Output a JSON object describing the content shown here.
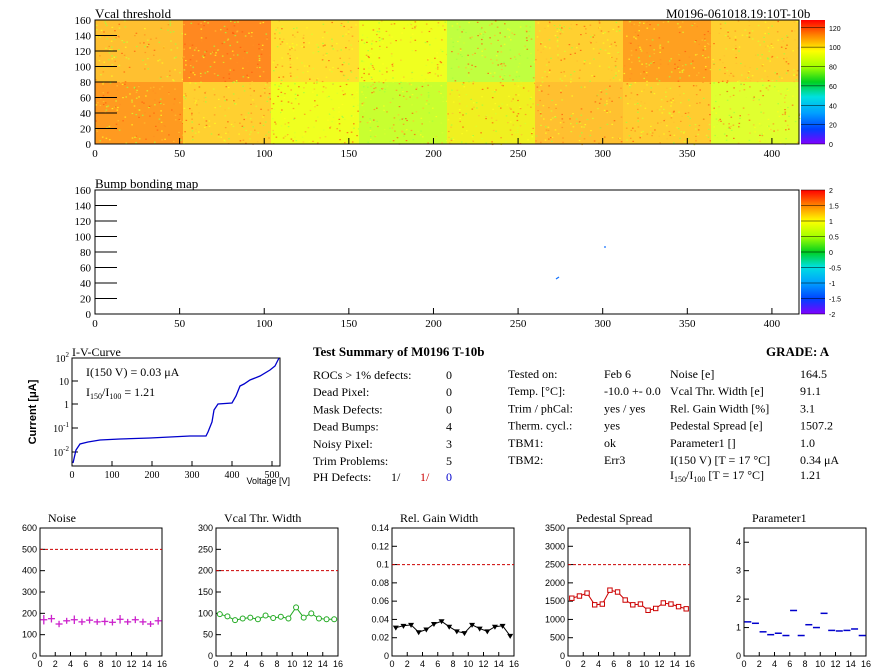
{
  "module_id": "M0196-061018.19:10T-10b",
  "vcal_map": {
    "title": "Vcal threshold",
    "xticks": [
      0,
      50,
      100,
      150,
      200,
      250,
      300,
      350,
      400
    ],
    "yticks": [
      0,
      20,
      40,
      60,
      80,
      100,
      120,
      140,
      160
    ],
    "colorbar_ticks": [
      0,
      20,
      40,
      60,
      80,
      100,
      120
    ]
  },
  "bump_map": {
    "title": "Bump bonding map",
    "xticks": [
      0,
      50,
      100,
      150,
      200,
      250,
      300,
      350,
      400
    ],
    "yticks": [
      0,
      20,
      40,
      60,
      80,
      100,
      120,
      140,
      160
    ],
    "colorbar_ticks": [
      "-2",
      "-1.5",
      "-1",
      "-0.5",
      "0",
      "0.5",
      "1",
      "1.5",
      "2"
    ]
  },
  "iv_curve": {
    "title": "I-V-Curve",
    "ylabel": "Current [μA]",
    "xlabel": "Voltage [V]",
    "xticks": [
      0,
      100,
      200,
      300,
      400,
      500
    ],
    "i150_label": "I(150 V) = 0.03 μA",
    "ratio_label_main": "I",
    "ratio_sub1": "150",
    "ratio_slash": "/I",
    "ratio_sub2": "100",
    "ratio_value": "=  1.21"
  },
  "summary": {
    "title": "Test Summary of M0196    T-10b",
    "grade": "GRADE:  A",
    "rows": [
      {
        "label": "ROCs > 1% defects:",
        "value": "0"
      },
      {
        "label": "Dead Pixel:",
        "value": "0"
      },
      {
        "label": "Mask Defects:",
        "value": "0"
      },
      {
        "label": "Dead Bumps:",
        "value": "4"
      },
      {
        "label": "Noisy Pixel:",
        "value": "3"
      },
      {
        "label": "Trim Problems:",
        "value": "5"
      }
    ],
    "ph_label": "PH Defects:",
    "ph_v1": "1/",
    "ph_v2": "1/",
    "ph_v3": "0",
    "mid": [
      {
        "label": "Tested on:",
        "value": "Feb 6"
      },
      {
        "label": "Temp. [°C]:",
        "value": "-10.0 +- 0.0"
      },
      {
        "label": "Trim / phCal:",
        "value": "yes / yes"
      },
      {
        "label": "Therm. cycl.:",
        "value": "yes"
      },
      {
        "label": "TBM1:",
        "value": "ok"
      },
      {
        "label": "TBM2:",
        "value": "Err3"
      }
    ],
    "right": [
      {
        "label": "Noise [e]",
        "value": "164.5"
      },
      {
        "label": "Vcal Thr. Width [e]",
        "value": "91.1"
      },
      {
        "label": "Rel. Gain Width [%]",
        "value": "3.1"
      },
      {
        "label": "Pedestal Spread [e]",
        "value": "1507.2"
      },
      {
        "label": "Parameter1 []",
        "value": "1.0"
      },
      {
        "label": "I(150 V)  [T = 17 °C]",
        "value": "0.34 μA"
      }
    ],
    "ratio_row": {
      "pre": "I",
      "sub1": "150",
      "mid": "/I",
      "sub2": "100",
      "post": "  [T = 17 °C]",
      "value": "1.21"
    }
  },
  "chart_data": [
    {
      "type": "scatter",
      "title": "Noise",
      "xlim": [
        0,
        16
      ],
      "ylim": [
        0,
        600
      ],
      "yticks": [
        "0",
        "100",
        "200",
        "300",
        "400",
        "500",
        "600"
      ],
      "xticks": [
        "0",
        "2",
        "4",
        "6",
        "8",
        "10",
        "12",
        "14",
        "16"
      ],
      "limit": 500,
      "color": "#cc22cc",
      "marker": "plus",
      "x": [
        0.5,
        1.5,
        2.5,
        3.5,
        4.5,
        5.5,
        6.5,
        7.5,
        8.5,
        9.5,
        10.5,
        11.5,
        12.5,
        13.5,
        14.5,
        15.5
      ],
      "values": [
        170,
        175,
        150,
        165,
        170,
        160,
        168,
        160,
        162,
        158,
        172,
        160,
        170,
        160,
        150,
        165
      ],
      "errors": [
        22,
        18,
        15,
        14,
        20,
        15,
        16,
        14,
        18,
        15,
        20,
        14,
        16,
        15,
        14,
        18
      ]
    },
    {
      "type": "line",
      "title": "Vcal Thr. Width",
      "xlim": [
        0,
        16
      ],
      "ylim": [
        0,
        300
      ],
      "yticks": [
        "0",
        "50",
        "100",
        "150",
        "200",
        "250",
        "300"
      ],
      "xticks": [
        "0",
        "2",
        "4",
        "6",
        "8",
        "10",
        "12",
        "14",
        "16"
      ],
      "limit": 200,
      "color": "#22aa22",
      "marker": "circle",
      "x": [
        0.5,
        1.5,
        2.5,
        3.5,
        4.5,
        5.5,
        6.5,
        7.5,
        8.5,
        9.5,
        10.5,
        11.5,
        12.5,
        13.5,
        14.5,
        15.5
      ],
      "values": [
        98,
        93,
        84,
        88,
        90,
        86,
        95,
        89,
        92,
        88,
        114,
        90,
        100,
        88,
        86,
        86
      ]
    },
    {
      "type": "line",
      "title": "Rel. Gain Width",
      "xlim": [
        0,
        16
      ],
      "ylim": [
        0,
        0.14
      ],
      "yticks": [
        "0",
        "0.02",
        "0.04",
        "0.06",
        "0.08",
        "0.1",
        "0.12",
        "0.14"
      ],
      "xticks": [
        "0",
        "2",
        "4",
        "6",
        "8",
        "10",
        "12",
        "14",
        "16"
      ],
      "limit": 0.1,
      "color": "#000000",
      "marker": "tri",
      "x": [
        0.5,
        1.5,
        2.5,
        3.5,
        4.5,
        5.5,
        6.5,
        7.5,
        8.5,
        9.5,
        10.5,
        11.5,
        12.5,
        13.5,
        14.5,
        15.5
      ],
      "values": [
        0.031,
        0.033,
        0.034,
        0.026,
        0.029,
        0.035,
        0.038,
        0.032,
        0.027,
        0.025,
        0.034,
        0.03,
        0.027,
        0.032,
        0.033,
        0.022
      ]
    },
    {
      "type": "line",
      "title": "Pedestal Spread",
      "xlim": [
        0,
        16
      ],
      "ylim": [
        0,
        3500
      ],
      "yticks": [
        "0",
        "500",
        "1000",
        "1500",
        "2000",
        "2500",
        "3000",
        "3500"
      ],
      "xticks": [
        "0",
        "2",
        "4",
        "6",
        "8",
        "10",
        "12",
        "14",
        "16"
      ],
      "limit": 2500,
      "color": "#cc0000",
      "marker": "square",
      "x": [
        0.5,
        1.5,
        2.5,
        3.5,
        4.5,
        5.5,
        6.5,
        7.5,
        8.5,
        9.5,
        10.5,
        11.5,
        12.5,
        13.5,
        14.5,
        15.5
      ],
      "values": [
        1580,
        1640,
        1720,
        1400,
        1420,
        1800,
        1750,
        1530,
        1400,
        1420,
        1250,
        1300,
        1450,
        1420,
        1350,
        1290
      ]
    },
    {
      "type": "scatter",
      "title": "Parameter1",
      "xlim": [
        0,
        16
      ],
      "ylim": [
        0,
        4.5
      ],
      "yticks": [
        "0",
        "1",
        "2",
        "3",
        "4"
      ],
      "xticks": [
        "0",
        "2",
        "4",
        "6",
        "8",
        "10",
        "12",
        "14",
        "16"
      ],
      "limit": null,
      "color": "#0000cc",
      "marker": "dash",
      "x": [
        0.5,
        1.5,
        2.5,
        3.5,
        4.5,
        5.5,
        6.5,
        7.5,
        8.5,
        9.5,
        10.5,
        11.5,
        12.5,
        13.5,
        14.5,
        15.5
      ],
      "values": [
        1.2,
        1.15,
        0.85,
        0.75,
        0.8,
        0.72,
        1.6,
        0.72,
        1.1,
        1.0,
        1.5,
        0.9,
        0.88,
        0.9,
        0.95,
        0.72
      ]
    }
  ]
}
